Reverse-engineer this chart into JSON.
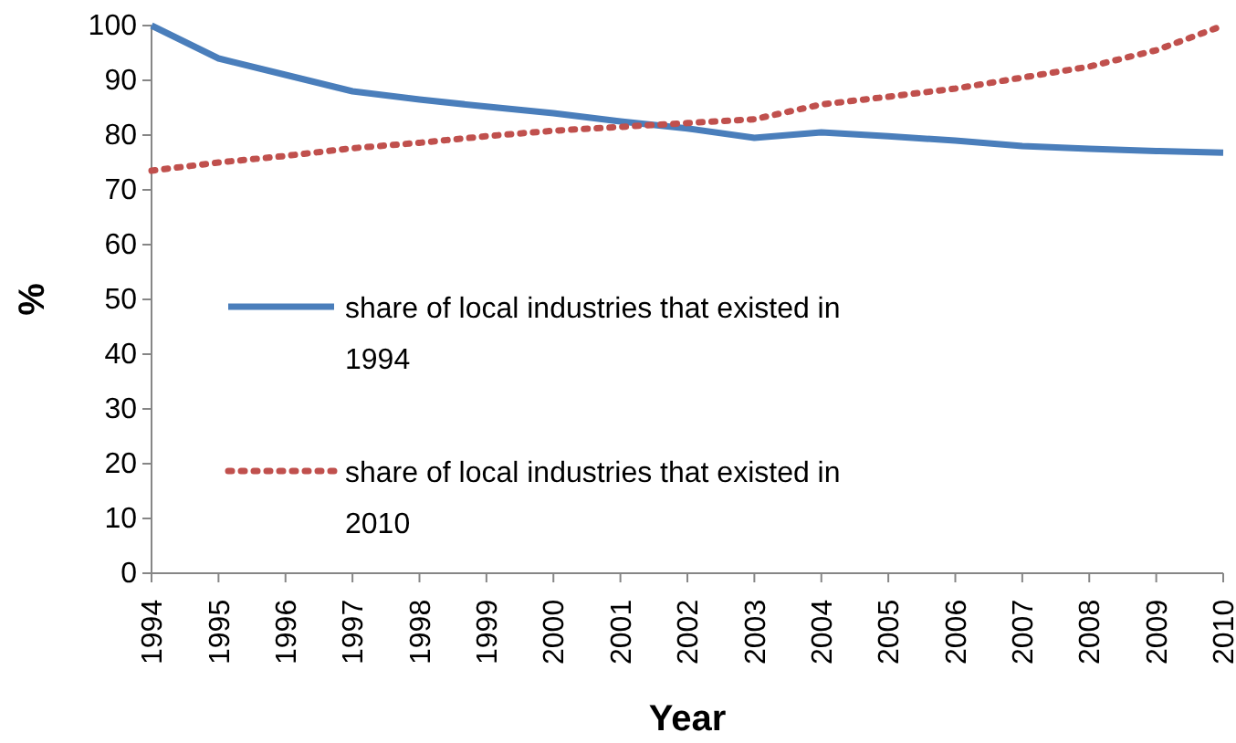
{
  "chart_data": {
    "type": "line",
    "xlabel": "Year",
    "ylabel": "%",
    "categories": [
      "1994",
      "1995",
      "1996",
      "1997",
      "1998",
      "1999",
      "2000",
      "2001",
      "2002",
      "2003",
      "2004",
      "2005",
      "2006",
      "2007",
      "2008",
      "2009",
      "2010"
    ],
    "series": [
      {
        "name": "share of local industries that existed in 1994",
        "color": "#4a7ebb",
        "line_style": "solid",
        "values": [
          100,
          94,
          91,
          88,
          86.5,
          85.2,
          84,
          82.5,
          81.2,
          79.5,
          80.5,
          79.8,
          79,
          78,
          77.5,
          77.1,
          76.8
        ]
      },
      {
        "name": "share of local industries that existed in 2010",
        "color": "#c0504d",
        "line_style": "dotted",
        "values": [
          73.5,
          75,
          76.2,
          77.6,
          78.6,
          79.8,
          80.8,
          81.5,
          82.2,
          82.9,
          85.6,
          87,
          88.5,
          90.5,
          92.5,
          95.5,
          100
        ]
      }
    ],
    "ylim": [
      0,
      100
    ],
    "yticks": [
      0,
      10,
      20,
      30,
      40,
      50,
      60,
      70,
      80,
      90,
      100
    ],
    "grid": false,
    "legend": "left",
    "marker": "none"
  }
}
